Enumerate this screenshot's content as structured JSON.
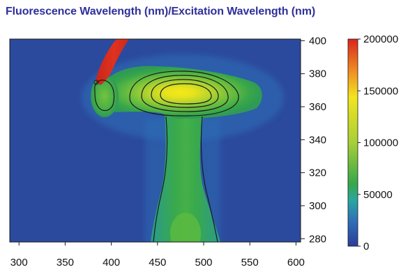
{
  "chart_data": {
    "type": "heatmap",
    "title": "Fluorescence Wavelength (nm)/Excitation Wavelength (nm)",
    "xlabel": "",
    "ylabel": "",
    "xlim": [
      290,
      605
    ],
    "ylim": [
      278,
      401
    ],
    "x_ticks": [
      300,
      350,
      400,
      450,
      500,
      550,
      600
    ],
    "y_ticks": [
      400,
      380,
      360,
      340,
      320,
      300,
      280
    ],
    "y_axis_side": "right",
    "colorbar": {
      "min": 0,
      "max": 200000,
      "ticks": [
        200000,
        150000,
        100000,
        50000,
        0
      ],
      "colors": [
        "#2c3d9a",
        "#2f6fb6",
        "#2aa6a0",
        "#35a84a",
        "#a8cf38",
        "#f2e51e",
        "#ef8a22",
        "#d9261c"
      ]
    },
    "features": [
      {
        "label": "main peak",
        "x": 472,
        "y": 366,
        "intensity": 150000
      },
      {
        "label": "vertical column",
        "x": 472,
        "y": 300,
        "intensity": 45000
      },
      {
        "label": "secondary peak",
        "x": 380,
        "y": 366,
        "intensity": 75000
      },
      {
        "label": "scatter band",
        "x": 385,
        "y": 392,
        "intensity": 200000
      }
    ],
    "grid": false,
    "contour_lines": true
  }
}
